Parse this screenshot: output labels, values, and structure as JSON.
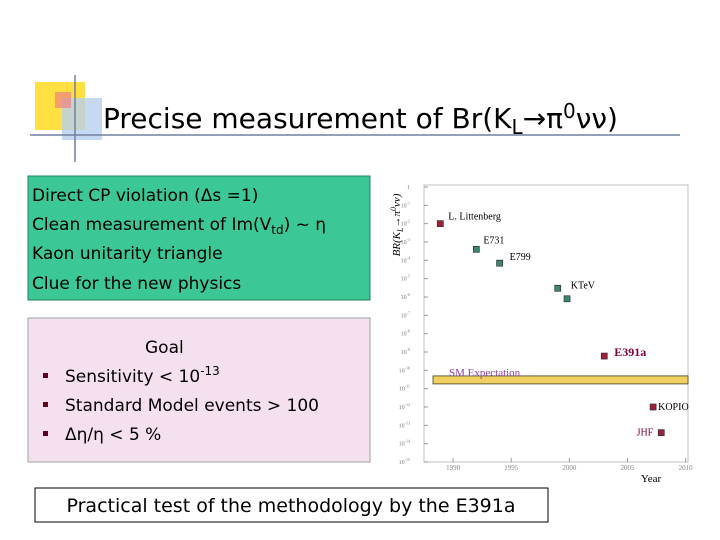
{
  "slide": {
    "title": {
      "main": "Precise measurement of Br(K",
      "sub": "L",
      "mid": "→π",
      "sup": "0",
      "end": "νν)"
    },
    "cp_box": {
      "line1": "Direct CP violation (Δs =1)",
      "line2": {
        "pre": "Clean measurement of Im(V",
        "sub": "td",
        "post": ") ~ η"
      },
      "line3": "Kaon unitarity triangle",
      "line4": "Clue for the new physics"
    },
    "goal_box": {
      "heading": "Goal",
      "bullet1": {
        "pre": "Sensitivity < 10",
        "sup": "-13"
      },
      "bullet2": "Standard Model events > 100",
      "bullet3": "Δη/η < 5 %"
    },
    "footer": "Practical test of the methodology by the E391a"
  },
  "chart_data": {
    "type": "scatter",
    "y_label": {
      "pre": "BR(K",
      "sub": "L",
      "mid": "→π",
      "sup": "0",
      "end": "νν)"
    },
    "x_label": "Year",
    "xlim": [
      1987.5,
      2010.2
    ],
    "xticks": [
      1990,
      1995,
      2000,
      2005,
      2010
    ],
    "ylim": [
      1e-15,
      1
    ],
    "log_y": true,
    "yticks": [
      1,
      {
        "value": 0.1,
        "label": "10",
        "exponent": "-1"
      },
      {
        "value": 0.01,
        "label": "10",
        "exponent": "-2"
      },
      {
        "value": 0.001,
        "label": "10",
        "exponent": "-3"
      },
      {
        "value": 0.0001,
        "label": "10",
        "exponent": "-4"
      },
      {
        "value": 1e-05,
        "label": "10",
        "exponent": "-5"
      },
      {
        "value": 1e-06,
        "label": "10",
        "exponent": "-6"
      },
      {
        "value": 1e-07,
        "label": "10",
        "exponent": "-7"
      },
      {
        "value": 1e-08,
        "label": "10",
        "exponent": "-8"
      },
      {
        "value": 1e-09,
        "label": "10",
        "exponent": "-9"
      },
      {
        "value": 1e-10,
        "label": "10",
        "exponent": "-10"
      },
      {
        "value": 1e-11,
        "label": "10",
        "exponent": "-11"
      },
      {
        "value": 1e-12,
        "label": "10",
        "exponent": "-12"
      },
      {
        "value": 1e-13,
        "label": "10",
        "exponent": "-13"
      },
      {
        "value": 1e-14,
        "label": "10",
        "exponent": "-14"
      },
      {
        "value": 1e-15,
        "label": "10",
        "exponent": "-15"
      }
    ],
    "series": [
      {
        "name": "L. Littenberg",
        "color": "#a0203c",
        "label_color": "#000000",
        "x": [
          1988.9
        ],
        "values": [
          0.01
        ]
      },
      {
        "name": "E731",
        "color": "#3a8a6a",
        "label_color": "#000000",
        "x": [
          1992
        ],
        "values": [
          0.0004
        ]
      },
      {
        "name": "E799",
        "color": "#3a8a6a",
        "label_color": "#000000",
        "x": [
          1994
        ],
        "values": [
          7e-05
        ]
      },
      {
        "name": "KTeV",
        "color": "#3a8a6a",
        "label_color": "#000000",
        "x": [
          1999,
          1999.8
        ],
        "values": [
          3e-06,
          8e-07
        ]
      },
      {
        "name": "E391a",
        "color": "#a0203c",
        "label_color": "#800040",
        "x": [
          2003
        ],
        "values": [
          6e-10
        ]
      },
      {
        "name": "KOPIO",
        "color": "#a0203c",
        "label_color": "#000000",
        "x": [
          2007.2
        ],
        "values": [
          1e-12
        ]
      },
      {
        "name": "JHF",
        "color": "#a0203c",
        "label_color": "#800040",
        "x": [
          2007.9
        ],
        "values": [
          4e-14
        ]
      }
    ],
    "reference_line": {
      "name": "SM Expectation",
      "value": 3e-11,
      "color": "#f0d060",
      "label_color": "#9040a0"
    }
  }
}
